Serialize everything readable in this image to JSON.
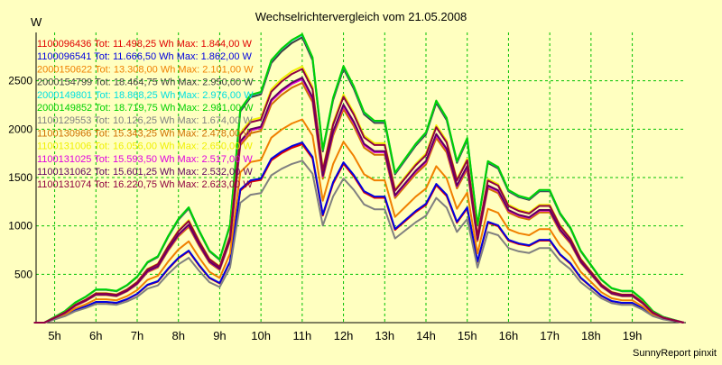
{
  "chart_data": {
    "type": "line",
    "title": "Wechselrichtervergleich vom 21.05.2008",
    "ylabel": "W",
    "xlabel": "",
    "footer": "SunnyReport pinxit",
    "ylim": [
      0,
      3000
    ],
    "xlim": [
      4.55,
      20.3
    ],
    "y_ticks": [
      500,
      1000,
      1500,
      2000,
      2500
    ],
    "x_ticks": [
      {
        "label": "5h",
        "value": 5
      },
      {
        "label": "6h",
        "value": 6
      },
      {
        "label": "7h",
        "value": 7
      },
      {
        "label": "8h",
        "value": 8
      },
      {
        "label": "9h",
        "value": 9
      },
      {
        "label": "10h",
        "value": 10
      },
      {
        "label": "11h",
        "value": 11
      },
      {
        "label": "12h",
        "value": 12
      },
      {
        "label": "13h",
        "value": 13
      },
      {
        "label": "14h",
        "value": 14
      },
      {
        "label": "15h",
        "value": 15
      },
      {
        "label": "16h",
        "value": 16
      },
      {
        "label": "17h",
        "value": 17
      },
      {
        "label": "18h",
        "value": 18
      },
      {
        "label": "19h",
        "value": 19
      }
    ],
    "grid": true,
    "legend_placement": "top-left",
    "x": [
      4.5,
      4.75,
      5.0,
      5.25,
      5.5,
      5.75,
      6.0,
      6.25,
      6.5,
      6.75,
      7.0,
      7.25,
      7.5,
      7.75,
      8.0,
      8.25,
      8.5,
      8.75,
      9.0,
      9.25,
      9.5,
      9.75,
      10.0,
      10.25,
      10.5,
      10.75,
      11.0,
      11.25,
      11.5,
      11.75,
      12.0,
      12.25,
      12.5,
      12.75,
      13.0,
      13.25,
      13.5,
      13.75,
      14.0,
      14.25,
      14.5,
      14.75,
      15.0,
      15.25,
      15.5,
      15.75,
      16.0,
      16.25,
      16.5,
      16.75,
      17.0,
      17.25,
      17.5,
      17.75,
      18.0,
      18.25,
      18.5,
      18.75,
      19.0,
      19.25,
      19.5,
      19.75,
      20.0,
      20.25
    ],
    "profile": [
      0,
      0,
      0.02,
      0.04,
      0.07,
      0.09,
      0.115,
      0.115,
      0.11,
      0.13,
      0.16,
      0.21,
      0.23,
      0.3,
      0.36,
      0.4,
      0.32,
      0.25,
      0.22,
      0.34,
      0.74,
      0.79,
      0.8,
      0.91,
      0.95,
      0.98,
      1.0,
      0.92,
      0.6,
      0.78,
      0.89,
      0.82,
      0.73,
      0.7,
      0.7,
      0.52,
      0.57,
      0.62,
      0.66,
      0.77,
      0.71,
      0.56,
      0.64,
      0.34,
      0.56,
      0.54,
      0.46,
      0.44,
      0.43,
      0.46,
      0.46,
      0.38,
      0.33,
      0.25,
      0.2,
      0.15,
      0.12,
      0.11,
      0.11,
      0.08,
      0.04,
      0.02,
      0.01,
      0
    ],
    "series": [
      {
        "name": "1100096436",
        "label": "1100096436 Tot: 11.498,25 Wh Max: 1.844,00 W",
        "max": 1844,
        "color": "#e00000"
      },
      {
        "name": "1100096541",
        "label": "1100096541 Tot: 11.666,50 Wh Max: 1.862,00 W",
        "max": 1862,
        "color": "#0000e0"
      },
      {
        "name": "2000150622",
        "label": "2000150622 Tot: 13.308,00 Wh Max: 2.101,00 W",
        "max": 2101,
        "color": "#f08000"
      },
      {
        "name": "2000154799",
        "label": "2000154799 Tot: 18.464,75 Wh Max: 2.950,00 W",
        "max": 2950,
        "color": "#404040"
      },
      {
        "name": "2000149801",
        "label": "2000149801 Tot: 18.868,25 Wh Max: 2.976,00 W",
        "max": 2976,
        "color": "#00e0e0"
      },
      {
        "name": "2000149852",
        "label": "2000149852 Tot: 18.719,75 Wh Max: 2.981,00 W",
        "max": 2981,
        "color": "#00d000"
      },
      {
        "name": "1100129553",
        "label": "1100129553 Tot: 10.126,25 Wh Max: 1.674,00 W",
        "max": 1674,
        "color": "#808080"
      },
      {
        "name": "1100130966",
        "label": "1100130966 Tot: 15.343,25 Wh Max: 2.478,00 W",
        "max": 2478,
        "color": "#d07000"
      },
      {
        "name": "1100131006",
        "label": "1100131006 Tot: 16.056,00 Wh Max: 2.650,00 W",
        "max": 2650,
        "color": "#f0f000"
      },
      {
        "name": "1100131025",
        "label": "1100131025 Tot: 15.593,50 Wh Max: 2.517,00 W",
        "max": 2517,
        "color": "#e000e0"
      },
      {
        "name": "1100131062",
        "label": "1100131062 Tot: 15.601,25 Wh Max: 2.532,00 W",
        "max": 2532,
        "color": "#600060"
      },
      {
        "name": "1100131074",
        "label": "1100131074 Tot: 16.220,75 Wh Max: 2.623,00 W",
        "max": 2623,
        "color": "#900040"
      }
    ]
  }
}
